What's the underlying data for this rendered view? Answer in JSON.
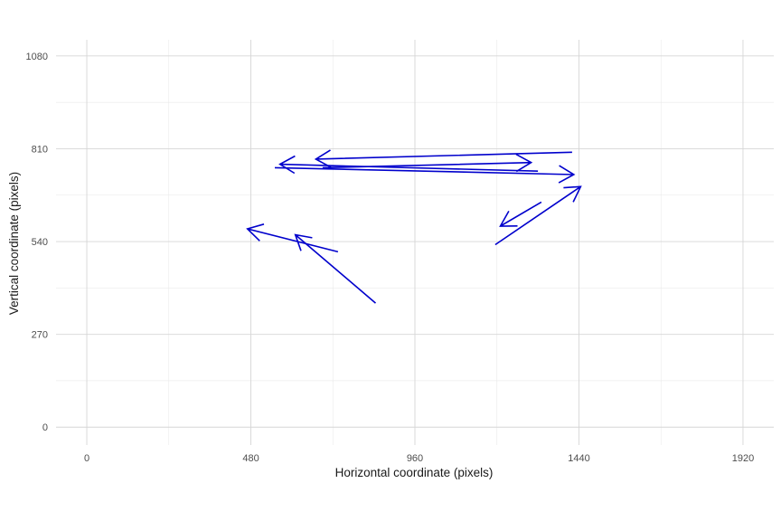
{
  "chart_data": {
    "type": "vector-field",
    "xlabel": "Horizontal coordinate (pixels)",
    "ylabel": "Vertical coordinate (pixels)",
    "xlim": [
      -90,
      2010
    ],
    "ylim": [
      -52,
      1127
    ],
    "x_ticks": [
      0,
      480,
      960,
      1440,
      1920
    ],
    "y_ticks": [
      0,
      270,
      540,
      810,
      1080
    ],
    "x_tick_labels": [
      "0",
      "480",
      "960",
      "1440",
      "1920"
    ],
    "y_tick_labels": [
      "0",
      "270",
      "540",
      "810",
      "1080"
    ],
    "grid": true,
    "arrow_color": "#0000cc",
    "arrows": [
      {
        "x_start": 845,
        "y_start": 361,
        "x_end": 610,
        "y_end": 560
      },
      {
        "x_start": 735,
        "y_start": 510,
        "x_end": 470,
        "y_end": 577
      },
      {
        "x_start": 1195,
        "y_start": 531,
        "x_end": 1445,
        "y_end": 700
      },
      {
        "x_start": 1330,
        "y_start": 655,
        "x_end": 1210,
        "y_end": 585
      },
      {
        "x_start": 1420,
        "y_start": 800,
        "x_end": 670,
        "y_end": 780
      },
      {
        "x_start": 690,
        "y_start": 755,
        "x_end": 1300,
        "y_end": 770
      },
      {
        "x_start": 1320,
        "y_start": 745,
        "x_end": 565,
        "y_end": 765
      },
      {
        "x_start": 550,
        "y_start": 755,
        "x_end": 1425,
        "y_end": 735
      }
    ]
  }
}
